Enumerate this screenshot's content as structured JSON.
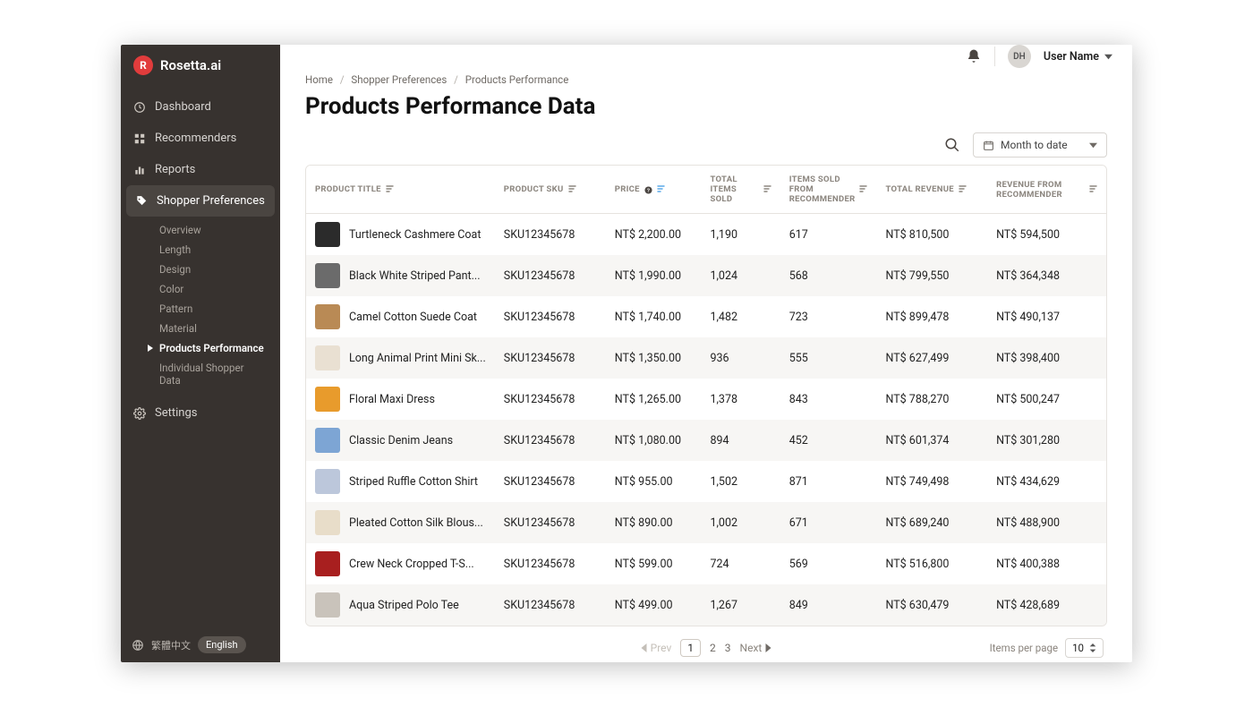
{
  "brand": {
    "name": "Rosetta.ai",
    "logo_letter": "R"
  },
  "sidebar": {
    "nav": [
      {
        "label": "Dashboard",
        "icon": "dashboard"
      },
      {
        "label": "Recommenders",
        "icon": "grid"
      },
      {
        "label": "Reports",
        "icon": "bar-chart"
      },
      {
        "label": "Shopper Preferences",
        "icon": "tag",
        "active": true
      },
      {
        "label": "Settings",
        "icon": "gear"
      }
    ],
    "subnav": [
      {
        "label": "Overview"
      },
      {
        "label": "Length"
      },
      {
        "label": "Design"
      },
      {
        "label": "Color"
      },
      {
        "label": "Pattern"
      },
      {
        "label": "Material"
      },
      {
        "label": "Products Performance",
        "active": true
      },
      {
        "label": "Individual Shopper Data"
      }
    ],
    "footer": {
      "lang_alt": "繁體中文",
      "lang_active": "English"
    }
  },
  "topbar": {
    "avatar_initials": "DH",
    "username": "User Name"
  },
  "breadcrumbs": [
    "Home",
    "Shopper Preferences",
    "Products Performance"
  ],
  "page_title": "Products Performance Data",
  "toolbar": {
    "date_range": "Month to date"
  },
  "table": {
    "columns": [
      {
        "label": "PRODUCT TITLE",
        "sortable": true
      },
      {
        "label": "PRODUCT SKU",
        "sortable": true
      },
      {
        "label": "PRICE",
        "sortable": true,
        "help": true,
        "highlight": true
      },
      {
        "label": "TOTAL ITEMS SOLD",
        "sortable": true
      },
      {
        "label": "ITEMS SOLD FROM RECOMMENDER",
        "sortable": true
      },
      {
        "label": "TOTAL REVENUE",
        "sortable": true
      },
      {
        "label": "REVENUE FROM RECOMMENDER",
        "sortable": true
      }
    ],
    "rows": [
      {
        "thumb": "#2b2b2b",
        "title": "Turtleneck Cashmere Coat",
        "sku": "SKU12345678",
        "price": "NT$ 2,200.00",
        "sold": "1,190",
        "rec_sold": "617",
        "revenue": "NT$ 810,500",
        "rec_revenue": "NT$ 594,500"
      },
      {
        "thumb": "#6b6b6b",
        "title": "Black White Striped Pant...",
        "sku": "SKU12345678",
        "price": "NT$ 1,990.00",
        "sold": "1,024",
        "rec_sold": "568",
        "revenue": "NT$ 799,550",
        "rec_revenue": "NT$ 364,348"
      },
      {
        "thumb": "#b98a55",
        "title": "Camel Cotton Suede Coat",
        "sku": "SKU12345678",
        "price": "NT$ 1,740.00",
        "sold": "1,482",
        "rec_sold": "723",
        "revenue": "NT$ 899,478",
        "rec_revenue": "NT$ 490,137"
      },
      {
        "thumb": "#e9e0d2",
        "title": "Long Animal Print Mini Sk...",
        "sku": "SKU12345678",
        "price": "NT$ 1,350.00",
        "sold": "936",
        "rec_sold": "555",
        "revenue": "NT$ 627,499",
        "rec_revenue": "NT$ 398,400"
      },
      {
        "thumb": "#e89b2c",
        "title": "Floral Maxi Dress",
        "sku": "SKU12345678",
        "price": "NT$ 1,265.00",
        "sold": "1,378",
        "rec_sold": "843",
        "revenue": "NT$ 788,270",
        "rec_revenue": "NT$ 500,247"
      },
      {
        "thumb": "#7da5d4",
        "title": "Classic Denim Jeans",
        "sku": "SKU12345678",
        "price": "NT$ 1,080.00",
        "sold": "894",
        "rec_sold": "452",
        "revenue": "NT$ 601,374",
        "rec_revenue": "NT$ 301,280"
      },
      {
        "thumb": "#bcc7db",
        "title": "Striped Ruffle Cotton Shirt",
        "sku": "SKU12345678",
        "price": "NT$ 955.00",
        "sold": "1,502",
        "rec_sold": "871",
        "revenue": "NT$ 749,498",
        "rec_revenue": "NT$ 434,629"
      },
      {
        "thumb": "#e8ddc9",
        "title": "Pleated Cotton Silk Blous...",
        "sku": "SKU12345678",
        "price": "NT$ 890.00",
        "sold": "1,002",
        "rec_sold": "671",
        "revenue": "NT$ 689,240",
        "rec_revenue": "NT$ 488,900"
      },
      {
        "thumb": "#a81f1f",
        "title": "Crew Neck Cropped T-S...",
        "sku": "SKU12345678",
        "price": "NT$ 599.00",
        "sold": "724",
        "rec_sold": "569",
        "revenue": "NT$ 516,800",
        "rec_revenue": "NT$ 400,388"
      },
      {
        "thumb": "#c9c3bb",
        "title": "Aqua Striped Polo Tee",
        "sku": "SKU12345678",
        "price": "NT$ 499.00",
        "sold": "1,267",
        "rec_sold": "849",
        "revenue": "NT$ 630,479",
        "rec_revenue": "NT$ 428,689"
      }
    ]
  },
  "pagination": {
    "prev": "Prev",
    "next": "Next",
    "pages": [
      "1",
      "2",
      "3"
    ],
    "current": "1",
    "items_per_page_label": "Items per page",
    "items_per_page_value": "10"
  },
  "colors": {
    "sidebar_bg": "#37322f",
    "accent": "#e13c3c",
    "row_alt": "#f7f6f4",
    "border": "#e6e3df",
    "text_muted": "#8b857e",
    "sort_highlight": "#5aa8e8"
  }
}
